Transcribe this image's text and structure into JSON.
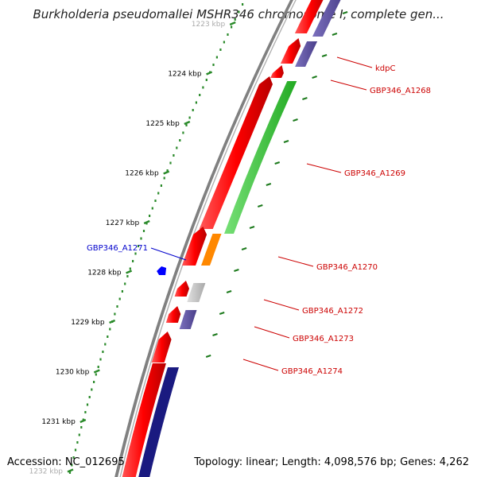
{
  "title": "Burkholderia pseudomallei MSHR346 chromosome I, complete gen...",
  "footer": {
    "accession": "Accession: NC_012695",
    "summary": "Topology: linear; Length: 4,098,576 bp; Genes: 4,262"
  },
  "ruler": {
    "ticks": [
      "1223 kbp",
      "1224 kbp",
      "1225 kbp",
      "1226 kbp",
      "1227 kbp",
      "1228 kbp",
      "1229 kbp",
      "1230 kbp",
      "1231 kbp",
      "1232 kbp"
    ]
  },
  "gene_labels": [
    {
      "text": "kdpC",
      "color": "#cc0000"
    },
    {
      "text": "GBP346_A1268",
      "color": "#cc0000"
    },
    {
      "text": "GBP346_A1269",
      "color": "#cc0000"
    },
    {
      "text": "GBP346_A1270",
      "color": "#cc0000"
    },
    {
      "text": "GBP346_A1271",
      "color": "#0000cc"
    },
    {
      "text": "GBP346_A1272",
      "color": "#cc0000"
    },
    {
      "text": "GBP346_A1273",
      "color": "#cc0000"
    },
    {
      "text": "GBP346_A1274",
      "color": "#cc0000"
    }
  ],
  "colors": {
    "backbone": "#808080",
    "gene_red": "#ff0000",
    "gene_purple": "#5a4e9c",
    "gene_navy": "#1a1a80",
    "gene_green": "#33cc33",
    "gene_orange": "#ff8800",
    "gene_gray": "#c0c0c0",
    "gene_blue": "#0000ff",
    "ruler_green": "#2a8a2a"
  }
}
